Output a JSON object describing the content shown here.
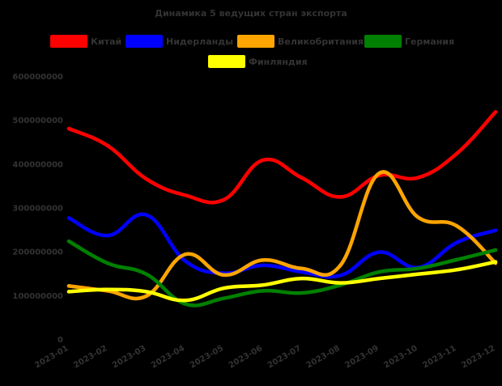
{
  "chart_data": {
    "type": "line",
    "title": "Динамика 5 ведущих стран экспорта",
    "xlabel": "",
    "ylabel": "",
    "categories": [
      "2023-01",
      "2023-02",
      "2023-03",
      "2023-04",
      "2023-05",
      "2023-06",
      "2023-07",
      "2023-08",
      "2023-09",
      "2023-10",
      "2023-11",
      "2023-12"
    ],
    "y_ticks": [
      "0",
      "100000000",
      "200000000",
      "300000000",
      "400000000",
      "500000000",
      "600000000"
    ],
    "ylim": [
      0,
      600000000
    ],
    "grid": false,
    "legend_position": "top",
    "series": [
      {
        "name": "Китай",
        "color": "#ff0000",
        "values": [
          482000000,
          443000000,
          367000000,
          330000000,
          320000000,
          410000000,
          370000000,
          326000000,
          375000000,
          370000000,
          425000000,
          520000000
        ]
      },
      {
        "name": "Нидерланды",
        "color": "#0000ff",
        "values": [
          278000000,
          238000000,
          285000000,
          180000000,
          152000000,
          170000000,
          155000000,
          147000000,
          200000000,
          165000000,
          222000000,
          250000000
        ]
      },
      {
        "name": "Великобритания",
        "color": "#ffa500",
        "values": [
          123000000,
          112000000,
          100000000,
          195000000,
          148000000,
          182000000,
          163000000,
          170000000,
          380000000,
          280000000,
          260000000,
          175000000
        ]
      },
      {
        "name": "Германия",
        "color": "#008000",
        "values": [
          225000000,
          175000000,
          150000000,
          82000000,
          95000000,
          112000000,
          107000000,
          125000000,
          155000000,
          163000000,
          183000000,
          205000000
        ]
      },
      {
        "name": "Финляндия",
        "color": "#ffff00",
        "values": [
          110000000,
          115000000,
          110000000,
          90000000,
          118000000,
          125000000,
          140000000,
          130000000,
          140000000,
          150000000,
          160000000,
          178000000
        ]
      }
    ]
  }
}
